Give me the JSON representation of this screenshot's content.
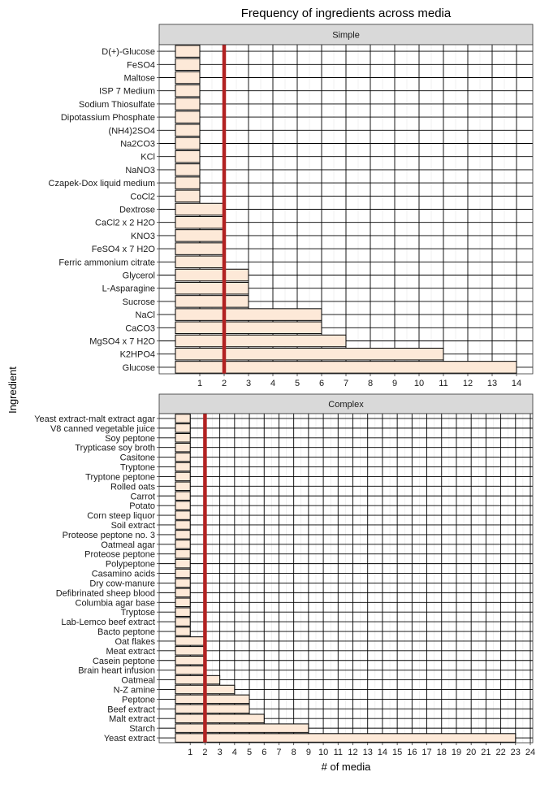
{
  "title": "Frequency of ingredients across media",
  "xlabel": "# of media",
  "ylabel": "Ingredient",
  "colors": {
    "bar_fill": "#fde9d8",
    "bar_stroke": "#000000",
    "reference_line": "#b22222",
    "strip_fill": "#d9d9d9",
    "grid": "#e6e6e6"
  },
  "chart_data": [
    {
      "type": "bar",
      "orientation": "horizontal",
      "panel": "Simple",
      "reference_line": 2,
      "xlim": [
        0,
        14
      ],
      "xticks": [
        1,
        2,
        3,
        4,
        5,
        6,
        7,
        8,
        9,
        10,
        11,
        12,
        13,
        14
      ],
      "categories": [
        "D(+)-Glucose",
        "FeSO4",
        "Maltose",
        "ISP 7 Medium",
        "Sodium Thiosulfate",
        "Dipotassium Phosphate",
        "(NH4)2SO4",
        "Na2CO3",
        "KCl",
        "NaNO3",
        "Czapek-Dox liquid medium",
        "CoCl2",
        "Dextrose",
        "CaCl2 x 2 H2O",
        "KNO3",
        "FeSO4 x 7 H2O",
        "Ferric ammonium citrate",
        "Glycerol",
        "L-Asparagine",
        "Sucrose",
        "NaCl",
        "CaCO3",
        "MgSO4 x 7 H2O",
        "K2HPO4",
        "Glucose"
      ],
      "values": [
        1,
        1,
        1,
        1,
        1,
        1,
        1,
        1,
        1,
        1,
        1,
        1,
        2,
        2,
        2,
        2,
        2,
        3,
        3,
        3,
        6,
        6,
        7,
        11,
        14
      ]
    },
    {
      "type": "bar",
      "orientation": "horizontal",
      "panel": "Complex",
      "reference_line": 2,
      "xlim": [
        0,
        24
      ],
      "xticks": [
        1,
        2,
        3,
        4,
        5,
        6,
        7,
        8,
        9,
        10,
        11,
        12,
        13,
        14,
        15,
        16,
        17,
        18,
        19,
        20,
        21,
        22,
        23,
        24
      ],
      "categories": [
        "Yeast extract-malt extract agar",
        "V8 canned vegetable juice",
        "Soy peptone",
        "Trypticase soy broth",
        "Casitone",
        "Tryptone",
        "Tryptone peptone",
        "Rolled oats",
        "Carrot",
        "Potato",
        "Corn steep liquor",
        "Soil extract",
        "Proteose peptone no. 3",
        "Oatmeal agar",
        "Proteose peptone",
        "Polypeptone",
        "Casamino acids",
        "Dry cow-manure",
        "Defibrinated sheep blood",
        "Columbia agar base",
        "Tryptose",
        "Lab-Lemco beef extract",
        "Bacto peptone",
        "Oat flakes",
        "Meat extract",
        "Casein peptone",
        "Brain heart infusion",
        "Oatmeal",
        "N-Z amine",
        "Peptone",
        "Beef extract",
        "Malt extract",
        "Starch",
        "Yeast extract"
      ],
      "values": [
        1,
        1,
        1,
        1,
        1,
        1,
        1,
        1,
        1,
        1,
        1,
        1,
        1,
        1,
        1,
        1,
        1,
        1,
        1,
        1,
        1,
        1,
        1,
        2,
        2,
        2,
        2,
        3,
        4,
        5,
        5,
        6,
        9,
        23
      ]
    }
  ]
}
